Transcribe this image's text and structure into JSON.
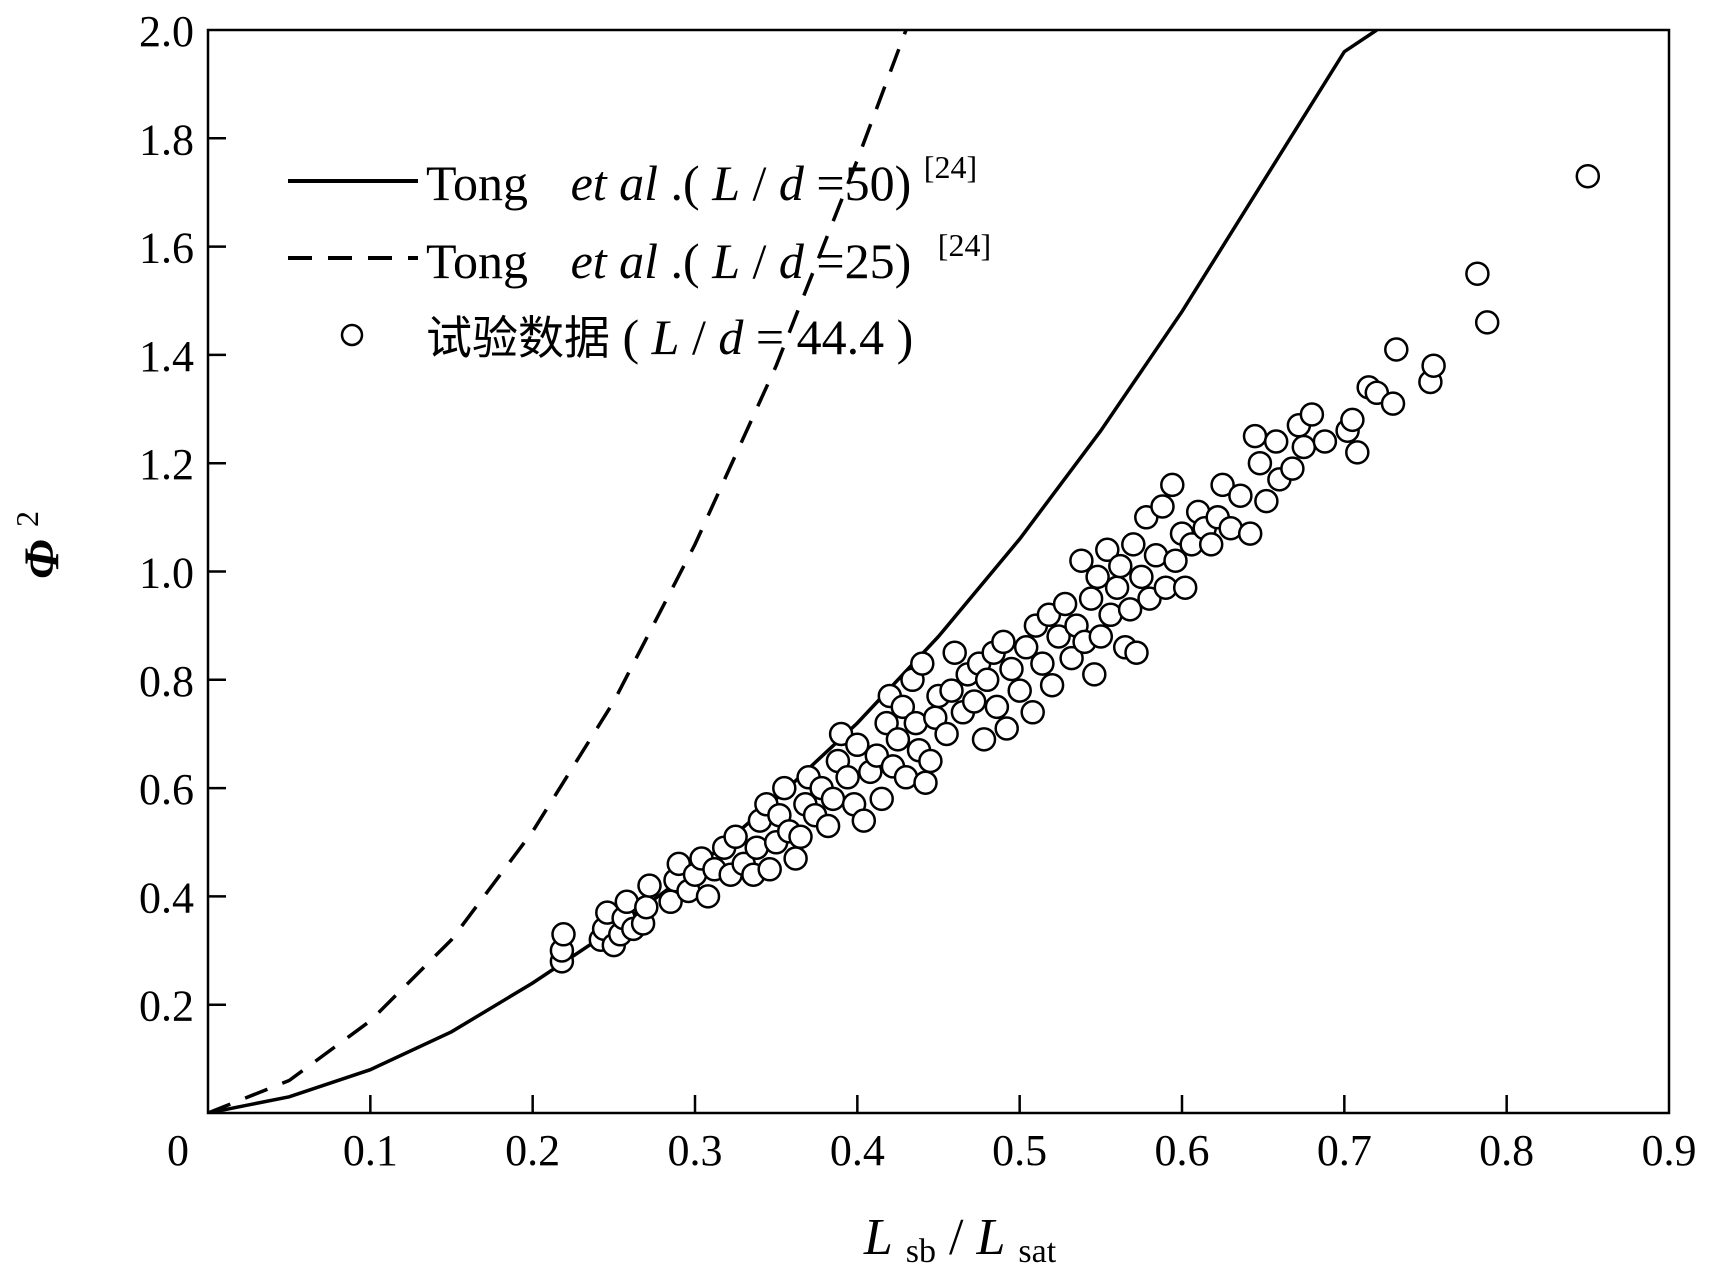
{
  "chart_data": {
    "type": "scatter",
    "title": "",
    "xlabel": {
      "main1": "L",
      "sub1": "sb",
      "slash": "/",
      "main2": "L",
      "sub2": "sat"
    },
    "ylabel": {
      "symbol": "Φ",
      "sup": "2"
    },
    "xlim": [
      0,
      0.9
    ],
    "ylim": [
      0,
      2.0
    ],
    "x_ticks": [
      0,
      0.1,
      0.2,
      0.3,
      0.4,
      0.5,
      0.6,
      0.7,
      0.8,
      0.9
    ],
    "x_tick_labels": [
      "0",
      "0.1",
      "0.2",
      "0.3",
      "0.4",
      "0.5",
      "0.6",
      "0.7",
      "0.8",
      "0.9"
    ],
    "y_ticks": [
      0.2,
      0.4,
      0.6,
      0.8,
      1.0,
      1.2,
      1.4,
      1.6,
      1.8,
      2.0
    ],
    "y_tick_labels": [
      "0.2",
      "0.4",
      "0.6",
      "0.8",
      "1.0",
      "1.2",
      "1.4",
      "1.6",
      "1.8",
      "2.0"
    ],
    "legend": {
      "position": "top-left",
      "entries": [
        {
          "style": "solid",
          "name": "Tong",
          "italic": "et al",
          "rest": ".(",
          "var1": "L",
          "op": "/",
          "var2": "d",
          "value": "=50)",
          "ref": "[24]"
        },
        {
          "style": "dashed",
          "name": "Tong",
          "italic": "et al",
          "rest": ".(",
          "var1": "L",
          "op": "/",
          "var2": "d",
          "value": "=25)",
          "ref": "[24]"
        },
        {
          "style": "marker",
          "name": "试验数据",
          "rest": " (",
          "var1": "L",
          "op": "/",
          "var2": "d",
          "value": "= 44.4 )"
        }
      ]
    },
    "series": [
      {
        "name": "Tong et al.(L/d=50)",
        "style": "solid",
        "x": [
          0,
          0.05,
          0.1,
          0.15,
          0.2,
          0.25,
          0.3,
          0.35,
          0.4,
          0.45,
          0.5,
          0.55,
          0.6,
          0.65,
          0.7,
          0.72
        ],
        "y": [
          0,
          0.03,
          0.08,
          0.15,
          0.24,
          0.34,
          0.45,
          0.58,
          0.72,
          0.88,
          1.06,
          1.26,
          1.48,
          1.72,
          1.96,
          2.0
        ]
      },
      {
        "name": "Tong et al.(L/d=25)",
        "style": "dashed",
        "x": [
          0,
          0.05,
          0.1,
          0.15,
          0.2,
          0.25,
          0.3,
          0.35,
          0.4,
          0.43
        ],
        "y": [
          0,
          0.06,
          0.17,
          0.32,
          0.52,
          0.76,
          1.05,
          1.38,
          1.76,
          2.0
        ]
      },
      {
        "name": "试验数据 (L/d= 44.4 )",
        "style": "marker",
        "points": [
          [
            0.218,
            0.28
          ],
          [
            0.218,
            0.3
          ],
          [
            0.219,
            0.33
          ],
          [
            0.242,
            0.32
          ],
          [
            0.244,
            0.34
          ],
          [
            0.246,
            0.37
          ],
          [
            0.25,
            0.31
          ],
          [
            0.254,
            0.33
          ],
          [
            0.256,
            0.36
          ],
          [
            0.258,
            0.39
          ],
          [
            0.262,
            0.34
          ],
          [
            0.268,
            0.35
          ],
          [
            0.27,
            0.38
          ],
          [
            0.272,
            0.42
          ],
          [
            0.285,
            0.39
          ],
          [
            0.288,
            0.43
          ],
          [
            0.29,
            0.46
          ],
          [
            0.296,
            0.41
          ],
          [
            0.3,
            0.44
          ],
          [
            0.304,
            0.47
          ],
          [
            0.308,
            0.4
          ],
          [
            0.312,
            0.45
          ],
          [
            0.318,
            0.49
          ],
          [
            0.322,
            0.44
          ],
          [
            0.325,
            0.51
          ],
          [
            0.33,
            0.46
          ],
          [
            0.336,
            0.44
          ],
          [
            0.338,
            0.49
          ],
          [
            0.34,
            0.54
          ],
          [
            0.344,
            0.57
          ],
          [
            0.346,
            0.45
          ],
          [
            0.35,
            0.5
          ],
          [
            0.352,
            0.55
          ],
          [
            0.355,
            0.6
          ],
          [
            0.358,
            0.52
          ],
          [
            0.362,
            0.47
          ],
          [
            0.365,
            0.51
          ],
          [
            0.368,
            0.57
          ],
          [
            0.37,
            0.62
          ],
          [
            0.374,
            0.55
          ],
          [
            0.378,
            0.6
          ],
          [
            0.382,
            0.53
          ],
          [
            0.385,
            0.58
          ],
          [
            0.388,
            0.65
          ],
          [
            0.39,
            0.7
          ],
          [
            0.394,
            0.62
          ],
          [
            0.398,
            0.57
          ],
          [
            0.4,
            0.68
          ],
          [
            0.404,
            0.54
          ],
          [
            0.408,
            0.63
          ],
          [
            0.412,
            0.66
          ],
          [
            0.415,
            0.58
          ],
          [
            0.418,
            0.72
          ],
          [
            0.42,
            0.77
          ],
          [
            0.422,
            0.64
          ],
          [
            0.425,
            0.69
          ],
          [
            0.428,
            0.75
          ],
          [
            0.43,
            0.62
          ],
          [
            0.434,
            0.8
          ],
          [
            0.436,
            0.72
          ],
          [
            0.438,
            0.67
          ],
          [
            0.44,
            0.83
          ],
          [
            0.442,
            0.61
          ],
          [
            0.445,
            0.65
          ],
          [
            0.448,
            0.73
          ],
          [
            0.45,
            0.77
          ],
          [
            0.455,
            0.7
          ],
          [
            0.458,
            0.78
          ],
          [
            0.46,
            0.85
          ],
          [
            0.465,
            0.74
          ],
          [
            0.468,
            0.81
          ],
          [
            0.472,
            0.76
          ],
          [
            0.475,
            0.83
          ],
          [
            0.478,
            0.69
          ],
          [
            0.48,
            0.8
          ],
          [
            0.484,
            0.85
          ],
          [
            0.486,
            0.75
          ],
          [
            0.49,
            0.87
          ],
          [
            0.492,
            0.71
          ],
          [
            0.495,
            0.82
          ],
          [
            0.5,
            0.78
          ],
          [
            0.504,
            0.86
          ],
          [
            0.508,
            0.74
          ],
          [
            0.51,
            0.9
          ],
          [
            0.514,
            0.83
          ],
          [
            0.518,
            0.92
          ],
          [
            0.52,
            0.79
          ],
          [
            0.524,
            0.88
          ],
          [
            0.528,
            0.94
          ],
          [
            0.532,
            0.84
          ],
          [
            0.535,
            0.9
          ],
          [
            0.538,
            1.02
          ],
          [
            0.54,
            0.87
          ],
          [
            0.544,
            0.95
          ],
          [
            0.546,
            0.81
          ],
          [
            0.548,
            0.99
          ],
          [
            0.55,
            0.88
          ],
          [
            0.554,
            1.04
          ],
          [
            0.556,
            0.92
          ],
          [
            0.56,
            0.97
          ],
          [
            0.562,
            1.01
          ],
          [
            0.565,
            0.86
          ],
          [
            0.568,
            0.93
          ],
          [
            0.57,
            1.05
          ],
          [
            0.572,
            0.85
          ],
          [
            0.575,
            0.99
          ],
          [
            0.578,
            1.1
          ],
          [
            0.58,
            0.95
          ],
          [
            0.584,
            1.03
          ],
          [
            0.588,
            1.12
          ],
          [
            0.59,
            0.97
          ],
          [
            0.594,
            1.16
          ],
          [
            0.596,
            1.02
          ],
          [
            0.6,
            1.07
          ],
          [
            0.602,
            0.97
          ],
          [
            0.606,
            1.05
          ],
          [
            0.61,
            1.11
          ],
          [
            0.614,
            1.08
          ],
          [
            0.618,
            1.05
          ],
          [
            0.622,
            1.1
          ],
          [
            0.625,
            1.16
          ],
          [
            0.63,
            1.08
          ],
          [
            0.636,
            1.14
          ],
          [
            0.642,
            1.07
          ],
          [
            0.645,
            1.25
          ],
          [
            0.648,
            1.2
          ],
          [
            0.652,
            1.13
          ],
          [
            0.658,
            1.24
          ],
          [
            0.66,
            1.17
          ],
          [
            0.668,
            1.19
          ],
          [
            0.672,
            1.27
          ],
          [
            0.675,
            1.23
          ],
          [
            0.68,
            1.29
          ],
          [
            0.688,
            1.24
          ],
          [
            0.702,
            1.26
          ],
          [
            0.705,
            1.28
          ],
          [
            0.708,
            1.22
          ],
          [
            0.715,
            1.34
          ],
          [
            0.72,
            1.33
          ],
          [
            0.73,
            1.31
          ],
          [
            0.732,
            1.41
          ],
          [
            0.753,
            1.35
          ],
          [
            0.755,
            1.38
          ],
          [
            0.782,
            1.55
          ],
          [
            0.788,
            1.46
          ],
          [
            0.85,
            1.73
          ]
        ]
      }
    ]
  }
}
